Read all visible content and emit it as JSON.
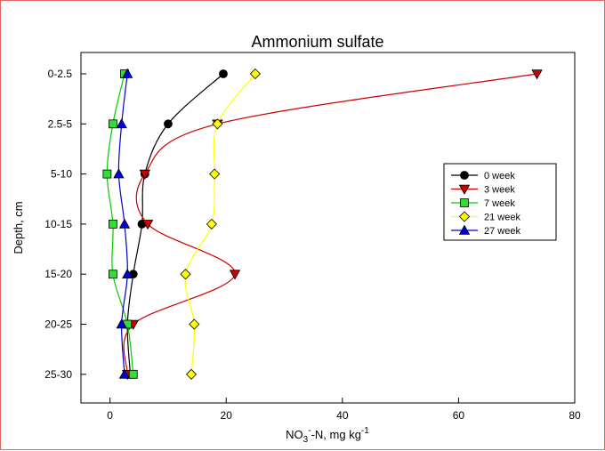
{
  "chart_data": {
    "type": "line",
    "title": "Ammonium sulfate",
    "xlabel": {
      "prefix": "NO",
      "sub": "3",
      "sup1": "-",
      "middle": "-N, mg kg",
      "sup2": "-1"
    },
    "ylabel": "Depth, cm",
    "xlim": [
      -5,
      80
    ],
    "xticks": [
      0,
      20,
      40,
      60,
      80
    ],
    "categories": [
      "0-2.5",
      "2.5-5",
      "5-10",
      "10-15",
      "15-20",
      "20-25",
      "25-30"
    ],
    "grid": false,
    "legend_position": "right",
    "series": [
      {
        "name": "0 week",
        "marker": "circle",
        "color": "#000000",
        "fill": "#000000",
        "values": [
          19.5,
          10.0,
          6.0,
          5.5,
          4.0,
          3.0,
          3.5
        ]
      },
      {
        "name": "3 week",
        "marker": "triangle-down",
        "color": "#cc0000",
        "fill": "#cc0000",
        "values": [
          73.5,
          18.5,
          6.0,
          6.5,
          21.5,
          4.0,
          3.0
        ]
      },
      {
        "name": "7 week",
        "marker": "square",
        "color": "#00cc00",
        "fill": "#33dd33",
        "values": [
          2.5,
          0.5,
          -0.5,
          0.5,
          0.5,
          3.0,
          4.0
        ]
      },
      {
        "name": "21 week",
        "marker": "diamond",
        "color": "#ffff00",
        "fill": "#ffff00",
        "values": [
          25.0,
          18.5,
          18.0,
          17.5,
          13.0,
          14.5,
          14.0
        ]
      },
      {
        "name": "27 week",
        "marker": "triangle-up",
        "color": "#0000cc",
        "fill": "#0000dd",
        "values": [
          3.0,
          2.0,
          1.5,
          2.5,
          3.0,
          2.0,
          2.5
        ]
      }
    ]
  }
}
